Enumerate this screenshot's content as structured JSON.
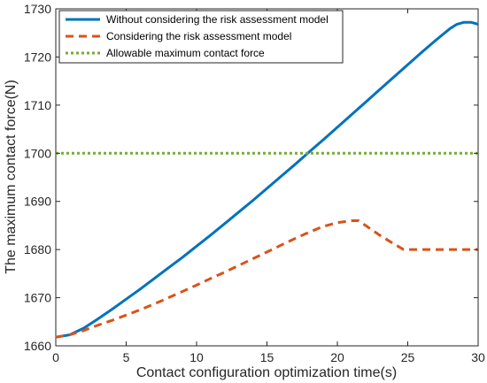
{
  "chart_data": {
    "type": "line",
    "title": "",
    "xlabel": "Contact configuration optimization time(s)",
    "ylabel": "The maximum contact force(N)",
    "xlim": [
      0,
      30
    ],
    "ylim": [
      1660,
      1730
    ],
    "xticks": [
      0,
      5,
      10,
      15,
      20,
      25,
      30
    ],
    "yticks": [
      1660,
      1670,
      1680,
      1690,
      1700,
      1710,
      1720,
      1730
    ],
    "grid": false,
    "legend_position": "top-left",
    "series": [
      {
        "name": "Without considering the risk assessment model",
        "color": "#0072BD",
        "style": "solid",
        "x": [
          0,
          1,
          2,
          3,
          4,
          5,
          6,
          7,
          8,
          9,
          10,
          11,
          12,
          13,
          14,
          15,
          16,
          17,
          18,
          19,
          20,
          21,
          22,
          23,
          24,
          25,
          26,
          27,
          28,
          28.5,
          29,
          29.5,
          30
        ],
        "y": [
          1661.8,
          1662.3,
          1663.7,
          1665.6,
          1667.6,
          1669.7,
          1671.8,
          1674.0,
          1676.2,
          1678.4,
          1680.7,
          1683.0,
          1685.4,
          1687.8,
          1690.2,
          1692.7,
          1695.2,
          1697.7,
          1700.3,
          1702.8,
          1705.4,
          1708.0,
          1710.6,
          1713.2,
          1715.8,
          1718.4,
          1721.0,
          1723.5,
          1725.9,
          1726.8,
          1727.2,
          1727.2,
          1726.8
        ]
      },
      {
        "name": "Considering the risk assessment model",
        "color": "#D95319",
        "style": "dashed",
        "x": [
          0,
          1,
          2,
          3,
          4,
          5,
          6,
          7,
          8,
          9,
          10,
          11,
          12,
          13,
          14,
          15,
          16,
          17,
          18,
          19,
          20,
          21,
          21.5,
          22,
          23,
          24,
          24.7,
          26,
          27,
          28,
          29,
          30
        ],
        "y": [
          1661.8,
          1662.3,
          1663.2,
          1664.3,
          1665.3,
          1666.4,
          1667.5,
          1668.7,
          1670.0,
          1671.3,
          1672.6,
          1674.0,
          1675.3,
          1676.7,
          1678.1,
          1679.5,
          1680.9,
          1682.3,
          1683.6,
          1684.8,
          1685.6,
          1686.0,
          1686.0,
          1685.0,
          1683.0,
          1681.2,
          1680.0,
          1680.0,
          1680.0,
          1680.0,
          1680.0,
          1680.0
        ]
      },
      {
        "name": "Allowable maximum contact force",
        "color": "#77AC30",
        "style": "dotted",
        "x": [
          0,
          30
        ],
        "y": [
          1700,
          1700
        ]
      }
    ]
  }
}
